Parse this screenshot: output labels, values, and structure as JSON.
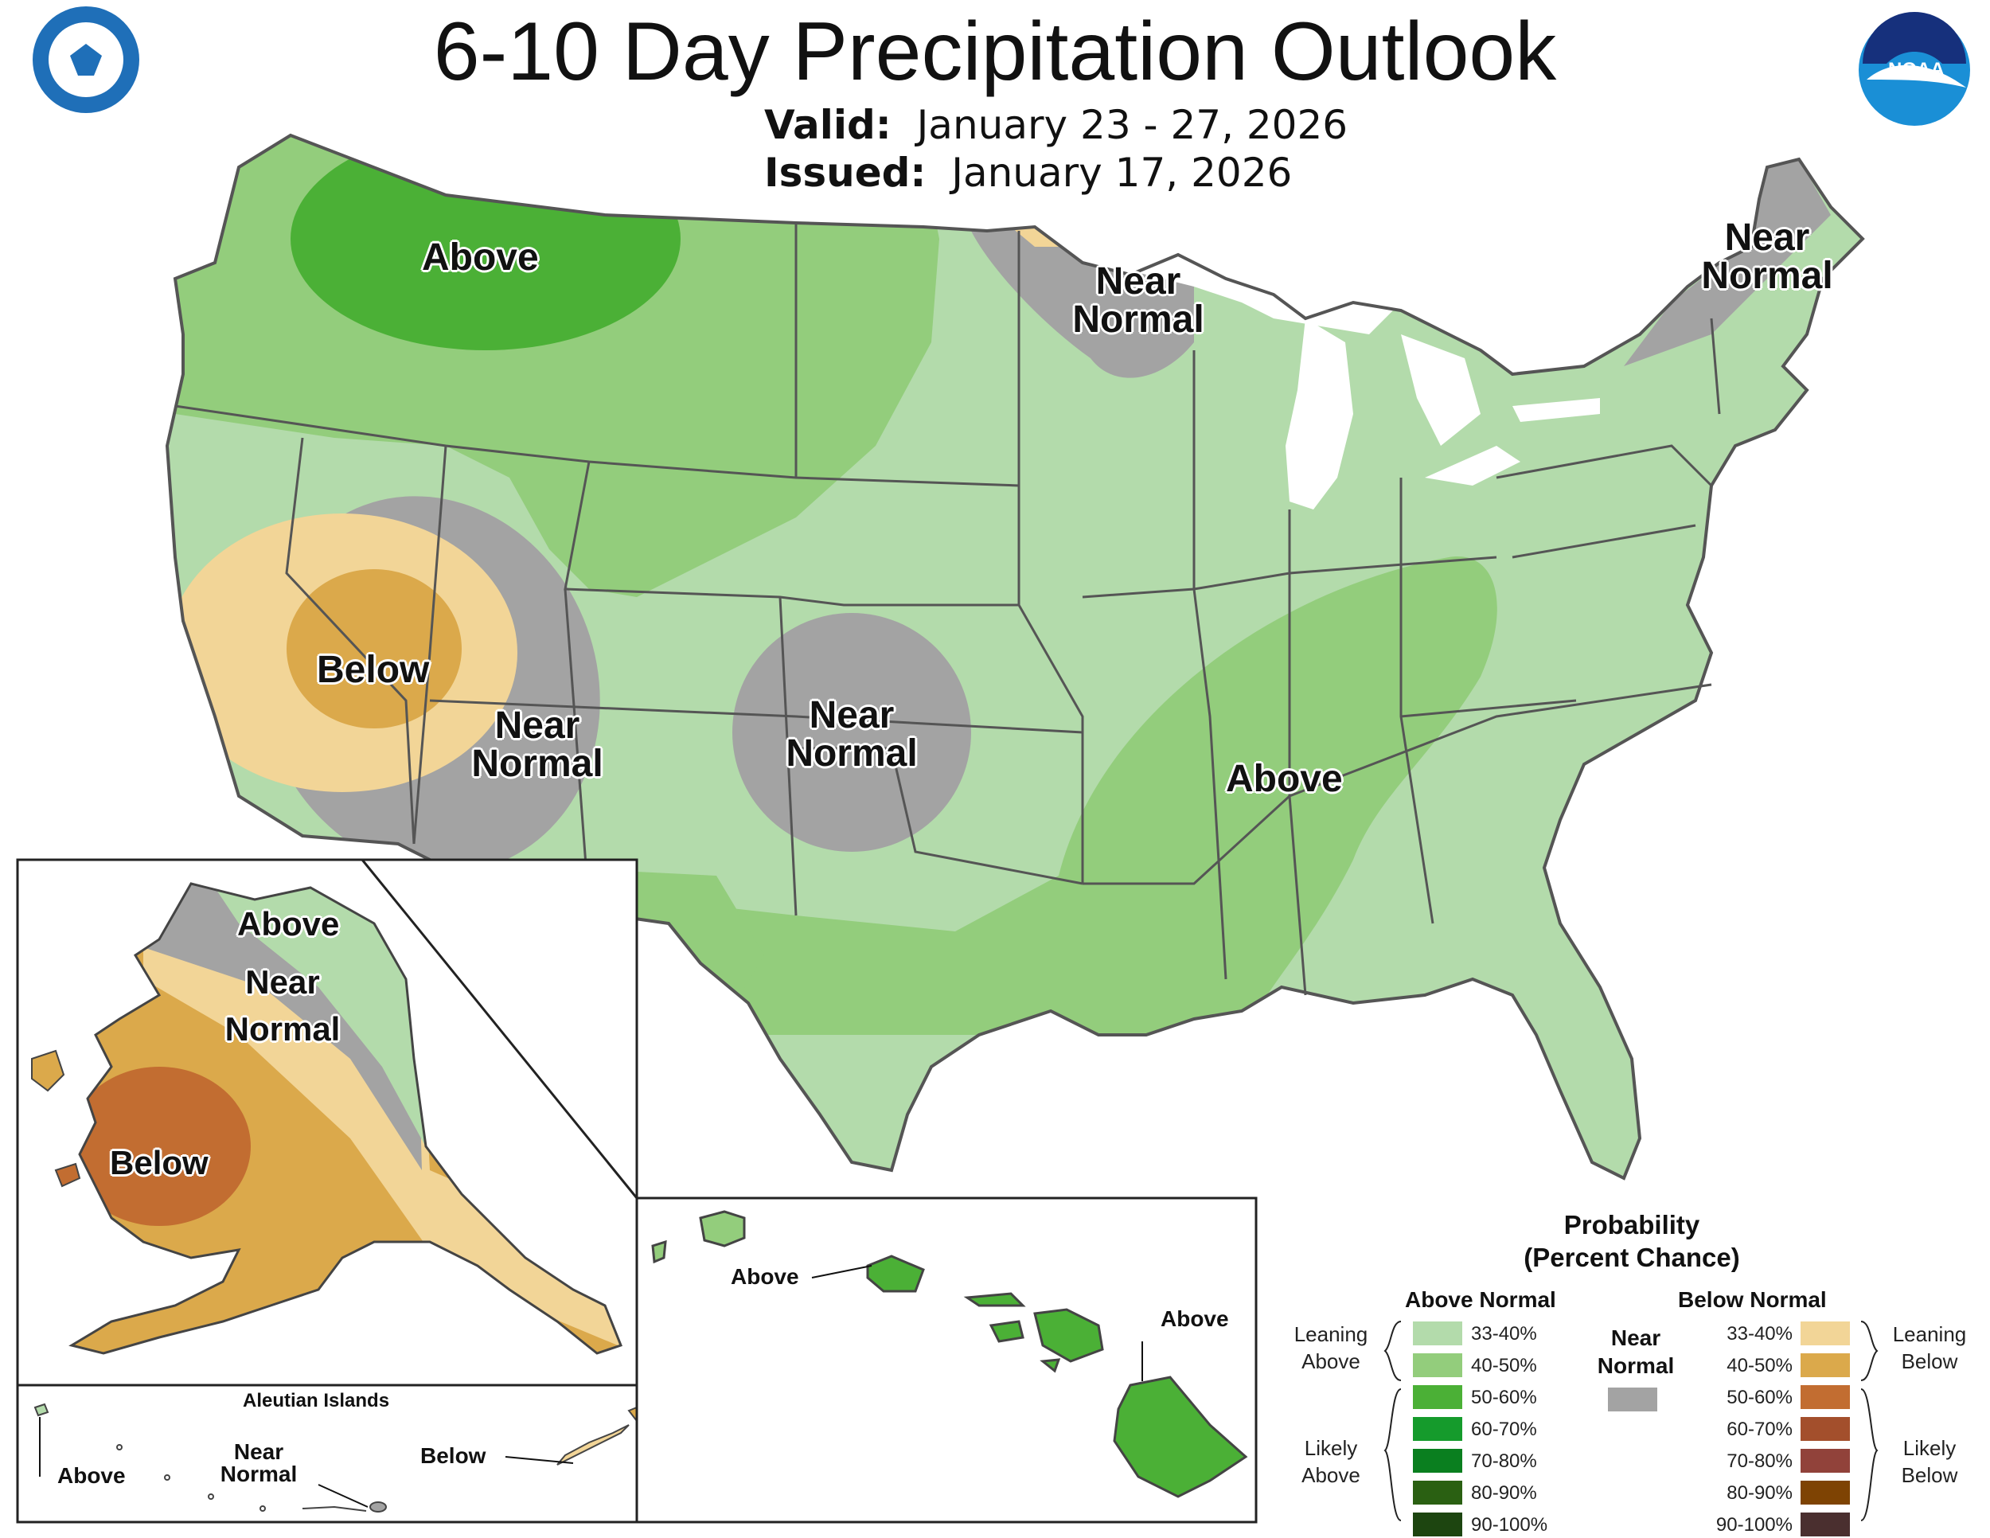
{
  "header": {
    "title": "6-10 Day Precipitation Outlook",
    "valid_label": "Valid:",
    "valid_value": "January 23 - 27, 2026",
    "issued_label": "Issued:",
    "issued_value": "January 17, 2026"
  },
  "logos": {
    "left": "Department of Commerce seal",
    "right": "NOAA logo",
    "right_text": "NOAA"
  },
  "conus_labels": {
    "nw_above": "Above",
    "glakes_near_1": "Near",
    "glakes_near_2": "Normal",
    "ne_near_1": "Near",
    "ne_near_2": "Normal",
    "ca_below": "Below",
    "nv_near_1": "Near",
    "nv_near_2": "Normal",
    "plains_near_1": "Near",
    "plains_near_2": "Normal",
    "south_above": "Above"
  },
  "alaska_labels": {
    "above": "Above",
    "near_1": "Near",
    "near_2": "Normal",
    "below": "Below"
  },
  "aleutian": {
    "title": "Aleutian Islands",
    "above": "Above",
    "near_1": "Near",
    "near_2": "Normal",
    "below": "Below"
  },
  "hawaii": {
    "above_west": "Above",
    "above_east": "Above"
  },
  "legend": {
    "title_1": "Probability",
    "title_2": "(Percent Chance)",
    "above_header": "Above Normal",
    "below_header": "Below Normal",
    "near_1": "Near",
    "near_2": "Normal",
    "leaning_above_1": "Leaning",
    "leaning_above_2": "Above",
    "likely_above_1": "Likely",
    "likely_above_2": "Above",
    "leaning_below_1": "Leaning",
    "leaning_below_2": "Below",
    "likely_below_1": "Likely",
    "likely_below_2": "Below",
    "above_items": [
      {
        "label": "33-40%",
        "color": "#b3dbab"
      },
      {
        "label": "40-50%",
        "color": "#93cd7c"
      },
      {
        "label": "50-60%",
        "color": "#4bb036"
      },
      {
        "label": "60-70%",
        "color": "#159b2c"
      },
      {
        "label": "70-80%",
        "color": "#0a7f1f"
      },
      {
        "label": "80-90%",
        "color": "#2a6012"
      },
      {
        "label": "90-100%",
        "color": "#1d4510"
      }
    ],
    "below_items": [
      {
        "label": "33-40%",
        "color": "#f2d597"
      },
      {
        "label": "40-50%",
        "color": "#dba94b"
      },
      {
        "label": "50-60%",
        "color": "#c26d31"
      },
      {
        "label": "60-70%",
        "color": "#a34f2c"
      },
      {
        "label": "70-80%",
        "color": "#91423a"
      },
      {
        "label": "80-90%",
        "color": "#7e4303"
      },
      {
        "label": "90-100%",
        "color": "#4a2f2f"
      }
    ],
    "near_color": "#a3a3a3"
  }
}
